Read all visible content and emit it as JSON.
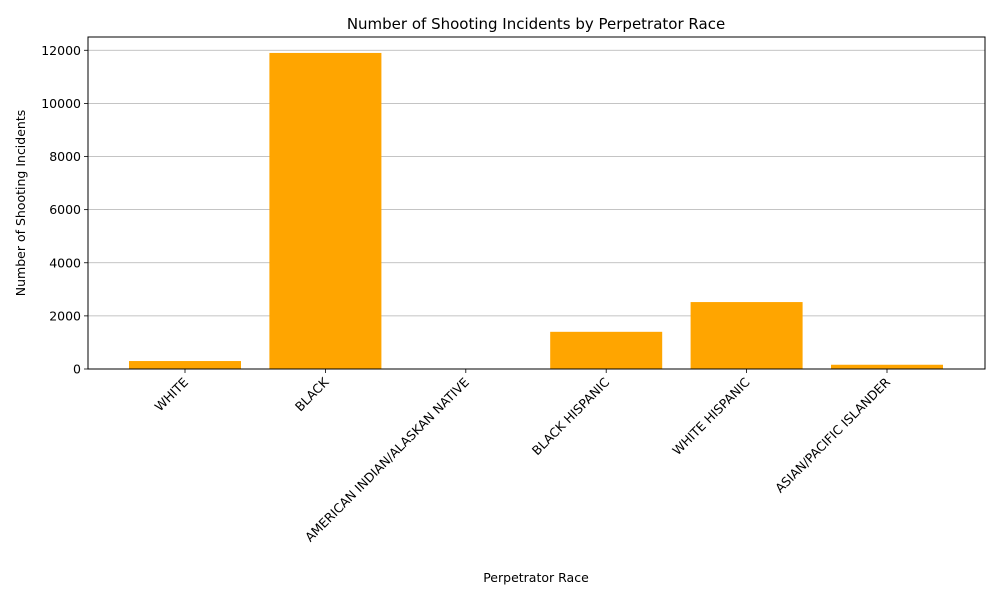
{
  "chart_data": {
    "type": "bar",
    "title": "Number of Shooting Incidents by Perpetrator Race",
    "xlabel": "Perpetrator Race",
    "ylabel": "Number of Shooting Incidents",
    "categories": [
      "WHITE",
      "BLACK",
      "AMERICAN INDIAN/ALASKAN NATIVE",
      "BLACK HISPANIC",
      "WHITE HISPANIC",
      "ASIAN/PACIFIC ISLANDER"
    ],
    "values": [
      300,
      11900,
      10,
      1400,
      2520,
      160
    ],
    "ylim": [
      0,
      12500
    ],
    "yticks": [
      0,
      2000,
      4000,
      6000,
      8000,
      10000,
      12000
    ],
    "grid": "y",
    "bar_color": "#ffa500",
    "legend": "none"
  }
}
